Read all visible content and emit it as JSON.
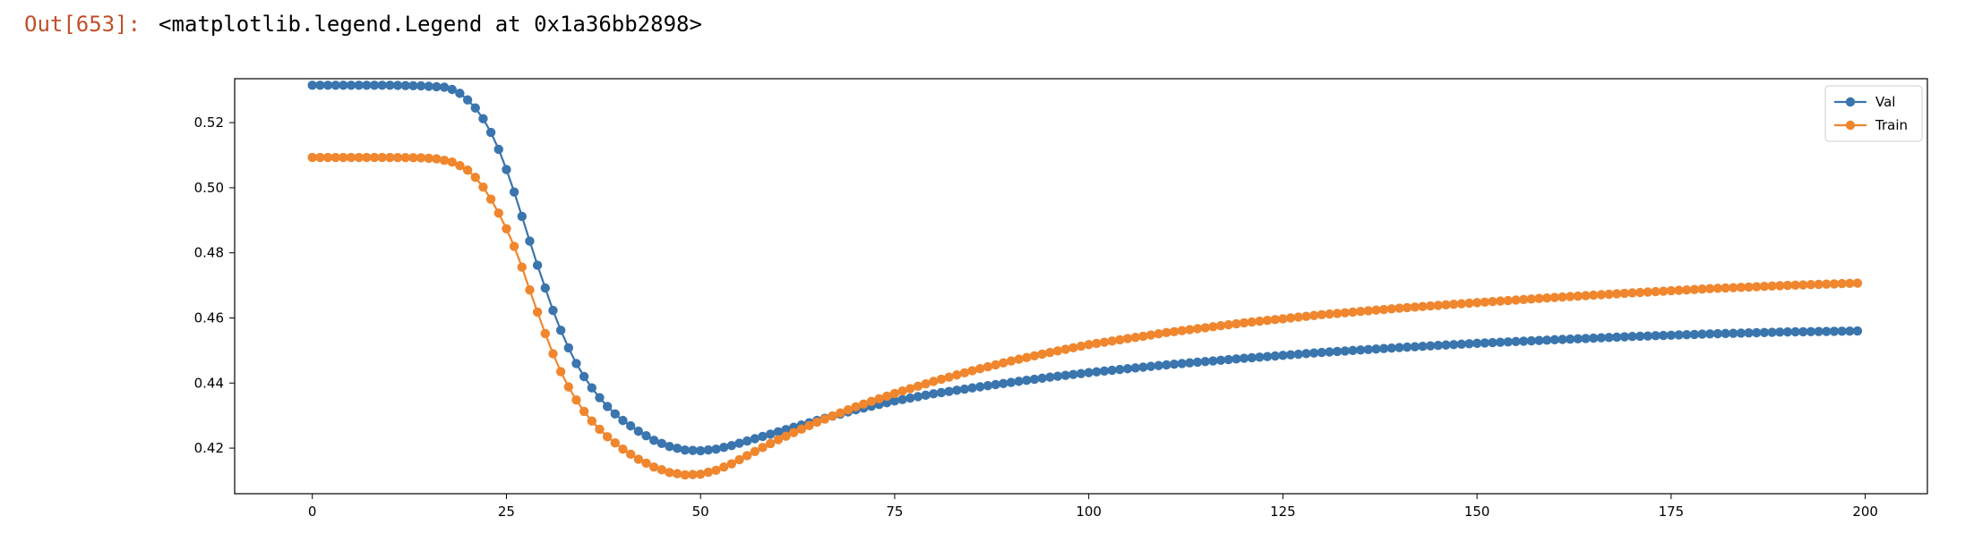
{
  "cell": {
    "prompt": "Out[653]:",
    "output_text": "<matplotlib.legend.Legend at 0x1a36bb2898>"
  },
  "chart_data": {
    "type": "line",
    "title": "",
    "xlabel": "",
    "ylabel": "",
    "xlim": [
      -10,
      208
    ],
    "ylim": [
      0.406,
      0.5335
    ],
    "xticks": [
      0,
      25,
      50,
      75,
      100,
      125,
      150,
      175,
      200
    ],
    "yticks": [
      0.42,
      0.44,
      0.46,
      0.48,
      0.5,
      0.52
    ],
    "ytick_labels": [
      "0.42",
      "0.44",
      "0.46",
      "0.48",
      "0.50",
      "0.52"
    ],
    "grid": false,
    "legend_position": "top-right",
    "marker": "circle",
    "series": [
      {
        "name": "Val",
        "color": "#3a75ae",
        "keypoints": [
          [
            0,
            0.5315
          ],
          [
            5,
            0.5315
          ],
          [
            10,
            0.5315
          ],
          [
            14,
            0.5313
          ],
          [
            17,
            0.5309
          ],
          [
            18,
            0.5302
          ],
          [
            19,
            0.529
          ],
          [
            20,
            0.527
          ],
          [
            21,
            0.5245
          ],
          [
            22,
            0.5212
          ],
          [
            23,
            0.517
          ],
          [
            24,
            0.5118
          ],
          [
            25,
            0.5056
          ],
          [
            26,
            0.4987
          ],
          [
            27,
            0.4912
          ],
          [
            28,
            0.4836
          ],
          [
            29,
            0.4762
          ],
          [
            30,
            0.4692
          ],
          [
            31,
            0.4623
          ],
          [
            32,
            0.4562
          ],
          [
            33,
            0.4508
          ],
          [
            34,
            0.446
          ],
          [
            35,
            0.442
          ],
          [
            36,
            0.4385
          ],
          [
            37,
            0.4355
          ],
          [
            38,
            0.4328
          ],
          [
            39,
            0.4305
          ],
          [
            40,
            0.4285
          ],
          [
            42,
            0.4252
          ],
          [
            44,
            0.4224
          ],
          [
            46,
            0.4205
          ],
          [
            48,
            0.4194
          ],
          [
            50,
            0.4192
          ],
          [
            52,
            0.4197
          ],
          [
            54,
            0.4208
          ],
          [
            56,
            0.4222
          ],
          [
            60,
            0.425
          ],
          [
            65,
            0.4285
          ],
          [
            70,
            0.4318
          ],
          [
            75,
            0.4345
          ],
          [
            80,
            0.4367
          ],
          [
            85,
            0.4385
          ],
          [
            90,
            0.4402
          ],
          [
            95,
            0.4418
          ],
          [
            100,
            0.4432
          ],
          [
            110,
            0.4456
          ],
          [
            120,
            0.4476
          ],
          [
            130,
            0.4494
          ],
          [
            140,
            0.4509
          ],
          [
            150,
            0.4522
          ],
          [
            160,
            0.4533
          ],
          [
            170,
            0.4543
          ],
          [
            180,
            0.4551
          ],
          [
            190,
            0.4557
          ],
          [
            199,
            0.456
          ]
        ]
      },
      {
        "name": "Train",
        "color": "#f0862d",
        "keypoints": [
          [
            0,
            0.5093
          ],
          [
            5,
            0.5093
          ],
          [
            10,
            0.5093
          ],
          [
            14,
            0.5092
          ],
          [
            16,
            0.5089
          ],
          [
            18,
            0.5079
          ],
          [
            19,
            0.5068
          ],
          [
            20,
            0.5054
          ],
          [
            21,
            0.5032
          ],
          [
            22,
            0.5002
          ],
          [
            23,
            0.4965
          ],
          [
            24,
            0.4922
          ],
          [
            25,
            0.4874
          ],
          [
            26,
            0.482
          ],
          [
            27,
            0.4756
          ],
          [
            28,
            0.4686
          ],
          [
            29,
            0.4618
          ],
          [
            30,
            0.4552
          ],
          [
            31,
            0.449
          ],
          [
            32,
            0.4435
          ],
          [
            33,
            0.4388
          ],
          [
            34,
            0.4348
          ],
          [
            35,
            0.4313
          ],
          [
            36,
            0.4283
          ],
          [
            37,
            0.4258
          ],
          [
            38,
            0.4235
          ],
          [
            40,
            0.4197
          ],
          [
            42,
            0.4166
          ],
          [
            44,
            0.4142
          ],
          [
            46,
            0.4125
          ],
          [
            48,
            0.4118
          ],
          [
            50,
            0.412
          ],
          [
            52,
            0.4132
          ],
          [
            54,
            0.4152
          ],
          [
            56,
            0.4177
          ],
          [
            58,
            0.4202
          ],
          [
            60,
            0.4226
          ],
          [
            65,
            0.428
          ],
          [
            70,
            0.4327
          ],
          [
            75,
            0.4368
          ],
          [
            80,
            0.4405
          ],
          [
            85,
            0.4438
          ],
          [
            90,
            0.4468
          ],
          [
            95,
            0.4494
          ],
          [
            100,
            0.4518
          ],
          [
            110,
            0.4555
          ],
          [
            120,
            0.4585
          ],
          [
            130,
            0.461
          ],
          [
            140,
            0.463
          ],
          [
            150,
            0.4647
          ],
          [
            160,
            0.4663
          ],
          [
            170,
            0.4677
          ],
          [
            180,
            0.469
          ],
          [
            190,
            0.47
          ],
          [
            199,
            0.4707
          ]
        ]
      }
    ]
  }
}
